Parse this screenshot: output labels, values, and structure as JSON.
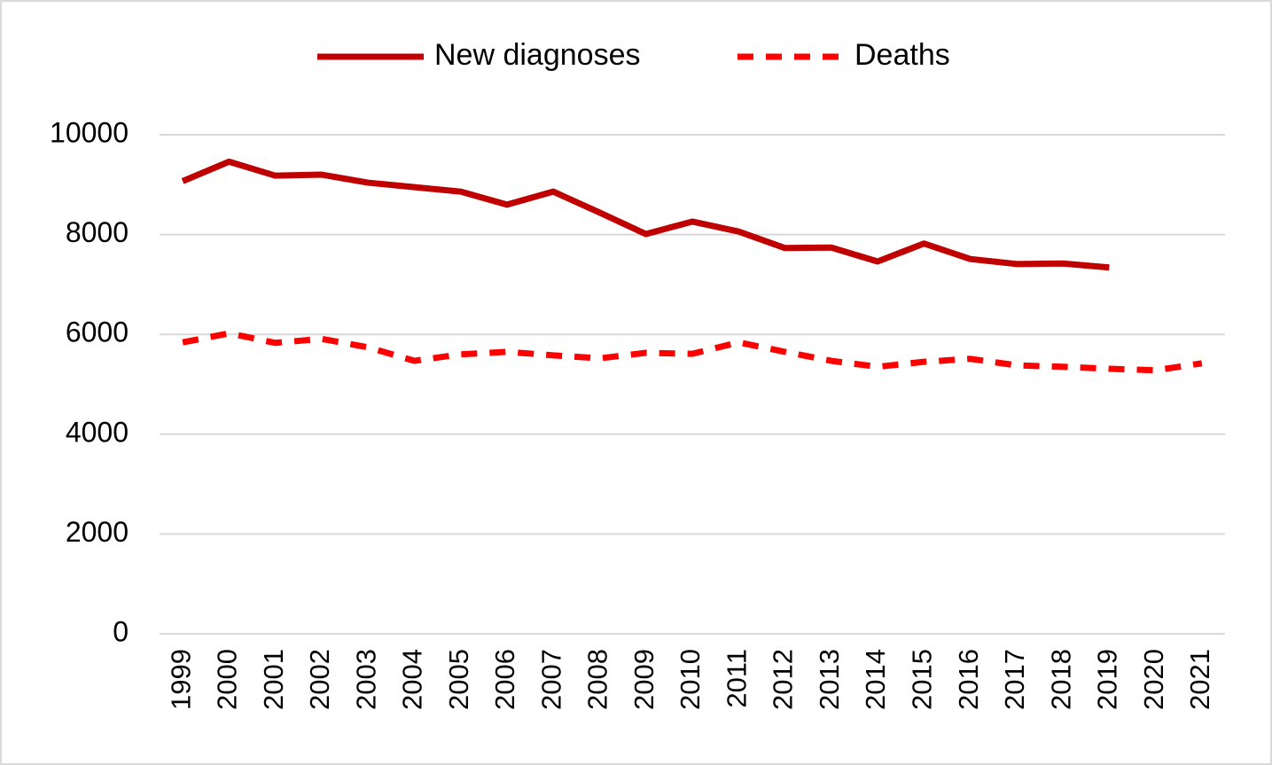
{
  "chart_data": {
    "type": "line",
    "categories": [
      "1999",
      "2000",
      "2001",
      "2002",
      "2003",
      "2004",
      "2005",
      "2006",
      "2007",
      "2008",
      "2009",
      "2010",
      "2011",
      "2012",
      "2013",
      "2014",
      "2015",
      "2016",
      "2017",
      "2018",
      "2019",
      "2020",
      "2021"
    ],
    "series": [
      {
        "name": "New diagnoses",
        "color": "#c00000",
        "style": "solid",
        "values": [
          9070,
          9460,
          9180,
          9200,
          9040,
          8950,
          8860,
          8600,
          8860,
          8440,
          8010,
          8260,
          8060,
          7730,
          7740,
          7460,
          7820,
          7510,
          7410,
          7420,
          7340,
          null,
          null
        ]
      },
      {
        "name": "Deaths",
        "color": "#ff0000",
        "style": "dashed",
        "values": [
          5840,
          6020,
          5830,
          5910,
          5740,
          5470,
          5600,
          5650,
          5580,
          5520,
          5630,
          5610,
          5840,
          5650,
          5470,
          5350,
          5450,
          5510,
          5380,
          5350,
          5310,
          5280,
          5420
        ]
      }
    ],
    "ylim": [
      0,
      10000
    ],
    "yticks": [
      0,
      2000,
      4000,
      6000,
      8000,
      10000
    ],
    "grid": true,
    "legend_position": "top"
  }
}
